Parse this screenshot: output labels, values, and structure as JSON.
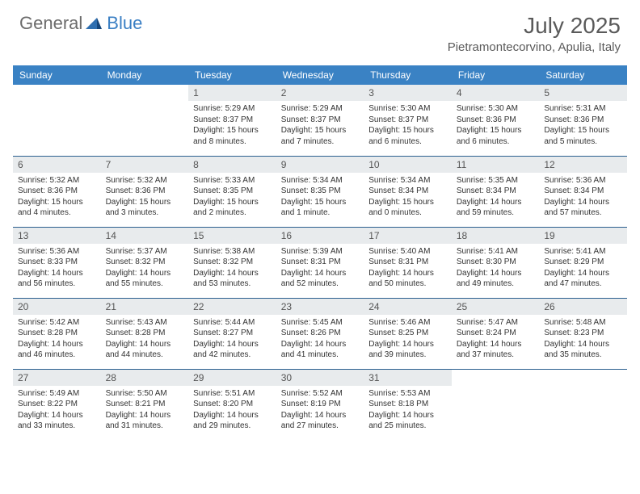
{
  "brand": {
    "part1": "General",
    "part2": "Blue"
  },
  "title": "July 2025",
  "location": "Pietramontecorvino, Apulia, Italy",
  "colors": {
    "header_bg": "#3a82c4",
    "header_text": "#ffffff",
    "row_border": "#2b5f8f",
    "daynum_bg": "#e8ebed",
    "logo_gray": "#6b6b6b",
    "logo_blue": "#3a7fc4",
    "text": "#333333"
  },
  "weekdays": [
    "Sunday",
    "Monday",
    "Tuesday",
    "Wednesday",
    "Thursday",
    "Friday",
    "Saturday"
  ],
  "weeks": [
    [
      null,
      null,
      {
        "n": "1",
        "sr": "Sunrise: 5:29 AM",
        "ss": "Sunset: 8:37 PM",
        "d1": "Daylight: 15 hours",
        "d2": "and 8 minutes."
      },
      {
        "n": "2",
        "sr": "Sunrise: 5:29 AM",
        "ss": "Sunset: 8:37 PM",
        "d1": "Daylight: 15 hours",
        "d2": "and 7 minutes."
      },
      {
        "n": "3",
        "sr": "Sunrise: 5:30 AM",
        "ss": "Sunset: 8:37 PM",
        "d1": "Daylight: 15 hours",
        "d2": "and 6 minutes."
      },
      {
        "n": "4",
        "sr": "Sunrise: 5:30 AM",
        "ss": "Sunset: 8:36 PM",
        "d1": "Daylight: 15 hours",
        "d2": "and 6 minutes."
      },
      {
        "n": "5",
        "sr": "Sunrise: 5:31 AM",
        "ss": "Sunset: 8:36 PM",
        "d1": "Daylight: 15 hours",
        "d2": "and 5 minutes."
      }
    ],
    [
      {
        "n": "6",
        "sr": "Sunrise: 5:32 AM",
        "ss": "Sunset: 8:36 PM",
        "d1": "Daylight: 15 hours",
        "d2": "and 4 minutes."
      },
      {
        "n": "7",
        "sr": "Sunrise: 5:32 AM",
        "ss": "Sunset: 8:36 PM",
        "d1": "Daylight: 15 hours",
        "d2": "and 3 minutes."
      },
      {
        "n": "8",
        "sr": "Sunrise: 5:33 AM",
        "ss": "Sunset: 8:35 PM",
        "d1": "Daylight: 15 hours",
        "d2": "and 2 minutes."
      },
      {
        "n": "9",
        "sr": "Sunrise: 5:34 AM",
        "ss": "Sunset: 8:35 PM",
        "d1": "Daylight: 15 hours",
        "d2": "and 1 minute."
      },
      {
        "n": "10",
        "sr": "Sunrise: 5:34 AM",
        "ss": "Sunset: 8:34 PM",
        "d1": "Daylight: 15 hours",
        "d2": "and 0 minutes."
      },
      {
        "n": "11",
        "sr": "Sunrise: 5:35 AM",
        "ss": "Sunset: 8:34 PM",
        "d1": "Daylight: 14 hours",
        "d2": "and 59 minutes."
      },
      {
        "n": "12",
        "sr": "Sunrise: 5:36 AM",
        "ss": "Sunset: 8:34 PM",
        "d1": "Daylight: 14 hours",
        "d2": "and 57 minutes."
      }
    ],
    [
      {
        "n": "13",
        "sr": "Sunrise: 5:36 AM",
        "ss": "Sunset: 8:33 PM",
        "d1": "Daylight: 14 hours",
        "d2": "and 56 minutes."
      },
      {
        "n": "14",
        "sr": "Sunrise: 5:37 AM",
        "ss": "Sunset: 8:32 PM",
        "d1": "Daylight: 14 hours",
        "d2": "and 55 minutes."
      },
      {
        "n": "15",
        "sr": "Sunrise: 5:38 AM",
        "ss": "Sunset: 8:32 PM",
        "d1": "Daylight: 14 hours",
        "d2": "and 53 minutes."
      },
      {
        "n": "16",
        "sr": "Sunrise: 5:39 AM",
        "ss": "Sunset: 8:31 PM",
        "d1": "Daylight: 14 hours",
        "d2": "and 52 minutes."
      },
      {
        "n": "17",
        "sr": "Sunrise: 5:40 AM",
        "ss": "Sunset: 8:31 PM",
        "d1": "Daylight: 14 hours",
        "d2": "and 50 minutes."
      },
      {
        "n": "18",
        "sr": "Sunrise: 5:41 AM",
        "ss": "Sunset: 8:30 PM",
        "d1": "Daylight: 14 hours",
        "d2": "and 49 minutes."
      },
      {
        "n": "19",
        "sr": "Sunrise: 5:41 AM",
        "ss": "Sunset: 8:29 PM",
        "d1": "Daylight: 14 hours",
        "d2": "and 47 minutes."
      }
    ],
    [
      {
        "n": "20",
        "sr": "Sunrise: 5:42 AM",
        "ss": "Sunset: 8:28 PM",
        "d1": "Daylight: 14 hours",
        "d2": "and 46 minutes."
      },
      {
        "n": "21",
        "sr": "Sunrise: 5:43 AM",
        "ss": "Sunset: 8:28 PM",
        "d1": "Daylight: 14 hours",
        "d2": "and 44 minutes."
      },
      {
        "n": "22",
        "sr": "Sunrise: 5:44 AM",
        "ss": "Sunset: 8:27 PM",
        "d1": "Daylight: 14 hours",
        "d2": "and 42 minutes."
      },
      {
        "n": "23",
        "sr": "Sunrise: 5:45 AM",
        "ss": "Sunset: 8:26 PM",
        "d1": "Daylight: 14 hours",
        "d2": "and 41 minutes."
      },
      {
        "n": "24",
        "sr": "Sunrise: 5:46 AM",
        "ss": "Sunset: 8:25 PM",
        "d1": "Daylight: 14 hours",
        "d2": "and 39 minutes."
      },
      {
        "n": "25",
        "sr": "Sunrise: 5:47 AM",
        "ss": "Sunset: 8:24 PM",
        "d1": "Daylight: 14 hours",
        "d2": "and 37 minutes."
      },
      {
        "n": "26",
        "sr": "Sunrise: 5:48 AM",
        "ss": "Sunset: 8:23 PM",
        "d1": "Daylight: 14 hours",
        "d2": "and 35 minutes."
      }
    ],
    [
      {
        "n": "27",
        "sr": "Sunrise: 5:49 AM",
        "ss": "Sunset: 8:22 PM",
        "d1": "Daylight: 14 hours",
        "d2": "and 33 minutes."
      },
      {
        "n": "28",
        "sr": "Sunrise: 5:50 AM",
        "ss": "Sunset: 8:21 PM",
        "d1": "Daylight: 14 hours",
        "d2": "and 31 minutes."
      },
      {
        "n": "29",
        "sr": "Sunrise: 5:51 AM",
        "ss": "Sunset: 8:20 PM",
        "d1": "Daylight: 14 hours",
        "d2": "and 29 minutes."
      },
      {
        "n": "30",
        "sr": "Sunrise: 5:52 AM",
        "ss": "Sunset: 8:19 PM",
        "d1": "Daylight: 14 hours",
        "d2": "and 27 minutes."
      },
      {
        "n": "31",
        "sr": "Sunrise: 5:53 AM",
        "ss": "Sunset: 8:18 PM",
        "d1": "Daylight: 14 hours",
        "d2": "and 25 minutes."
      },
      null,
      null
    ]
  ]
}
